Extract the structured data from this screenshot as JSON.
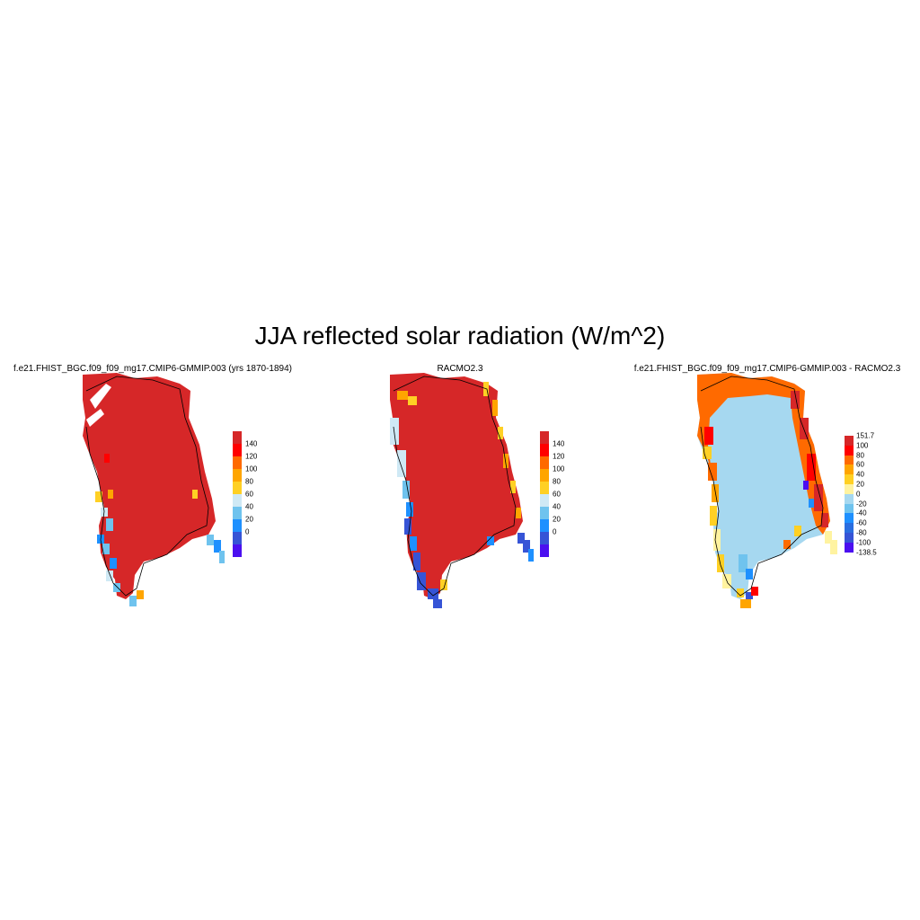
{
  "title": "JJA reflected solar radiation (W/m^2)",
  "panels": [
    {
      "title": "f.e21.FHIST_BGC.f09_f09_mg17.CMIP6-GMMIP.003 (yrs 1870-1894)",
      "colorbar": {
        "labels": [
          "140",
          "120",
          "100",
          "80",
          "60",
          "40",
          "20",
          "0"
        ],
        "colors": [
          "#d62728",
          "#ff0000",
          "#ff6a00",
          "#ffa500",
          "#ffd024",
          "#cfe9f5",
          "#6fc3ee",
          "#1e90ff",
          "#3654d6",
          "#4b0ff0"
        ]
      }
    },
    {
      "title": "RACMO2.3",
      "colorbar": {
        "labels": [
          "140",
          "120",
          "100",
          "80",
          "60",
          "40",
          "20",
          "0"
        ],
        "colors": [
          "#d62728",
          "#ff0000",
          "#ff6a00",
          "#ffa500",
          "#ffd024",
          "#cfe9f5",
          "#6fc3ee",
          "#1e90ff",
          "#3654d6",
          "#4b0ff0"
        ]
      }
    },
    {
      "title": "f.e21.FHIST_BGC.f09_f09_mg17.CMIP6-GMMIP.003 - RACMO2.3",
      "colorbar": {
        "labels": [
          "151.7",
          "100",
          "80",
          "60",
          "40",
          "20",
          "0",
          "-20",
          "-40",
          "-60",
          "-80",
          "-100",
          "-138.5"
        ],
        "colors": [
          "#d62728",
          "#ff0000",
          "#ff6a00",
          "#ffa500",
          "#ffd024",
          "#fff3a0",
          "#a6d8f0",
          "#6fc3ee",
          "#1e90ff",
          "#2a6ee0",
          "#3654d6",
          "#4b0ff0"
        ]
      }
    }
  ]
}
